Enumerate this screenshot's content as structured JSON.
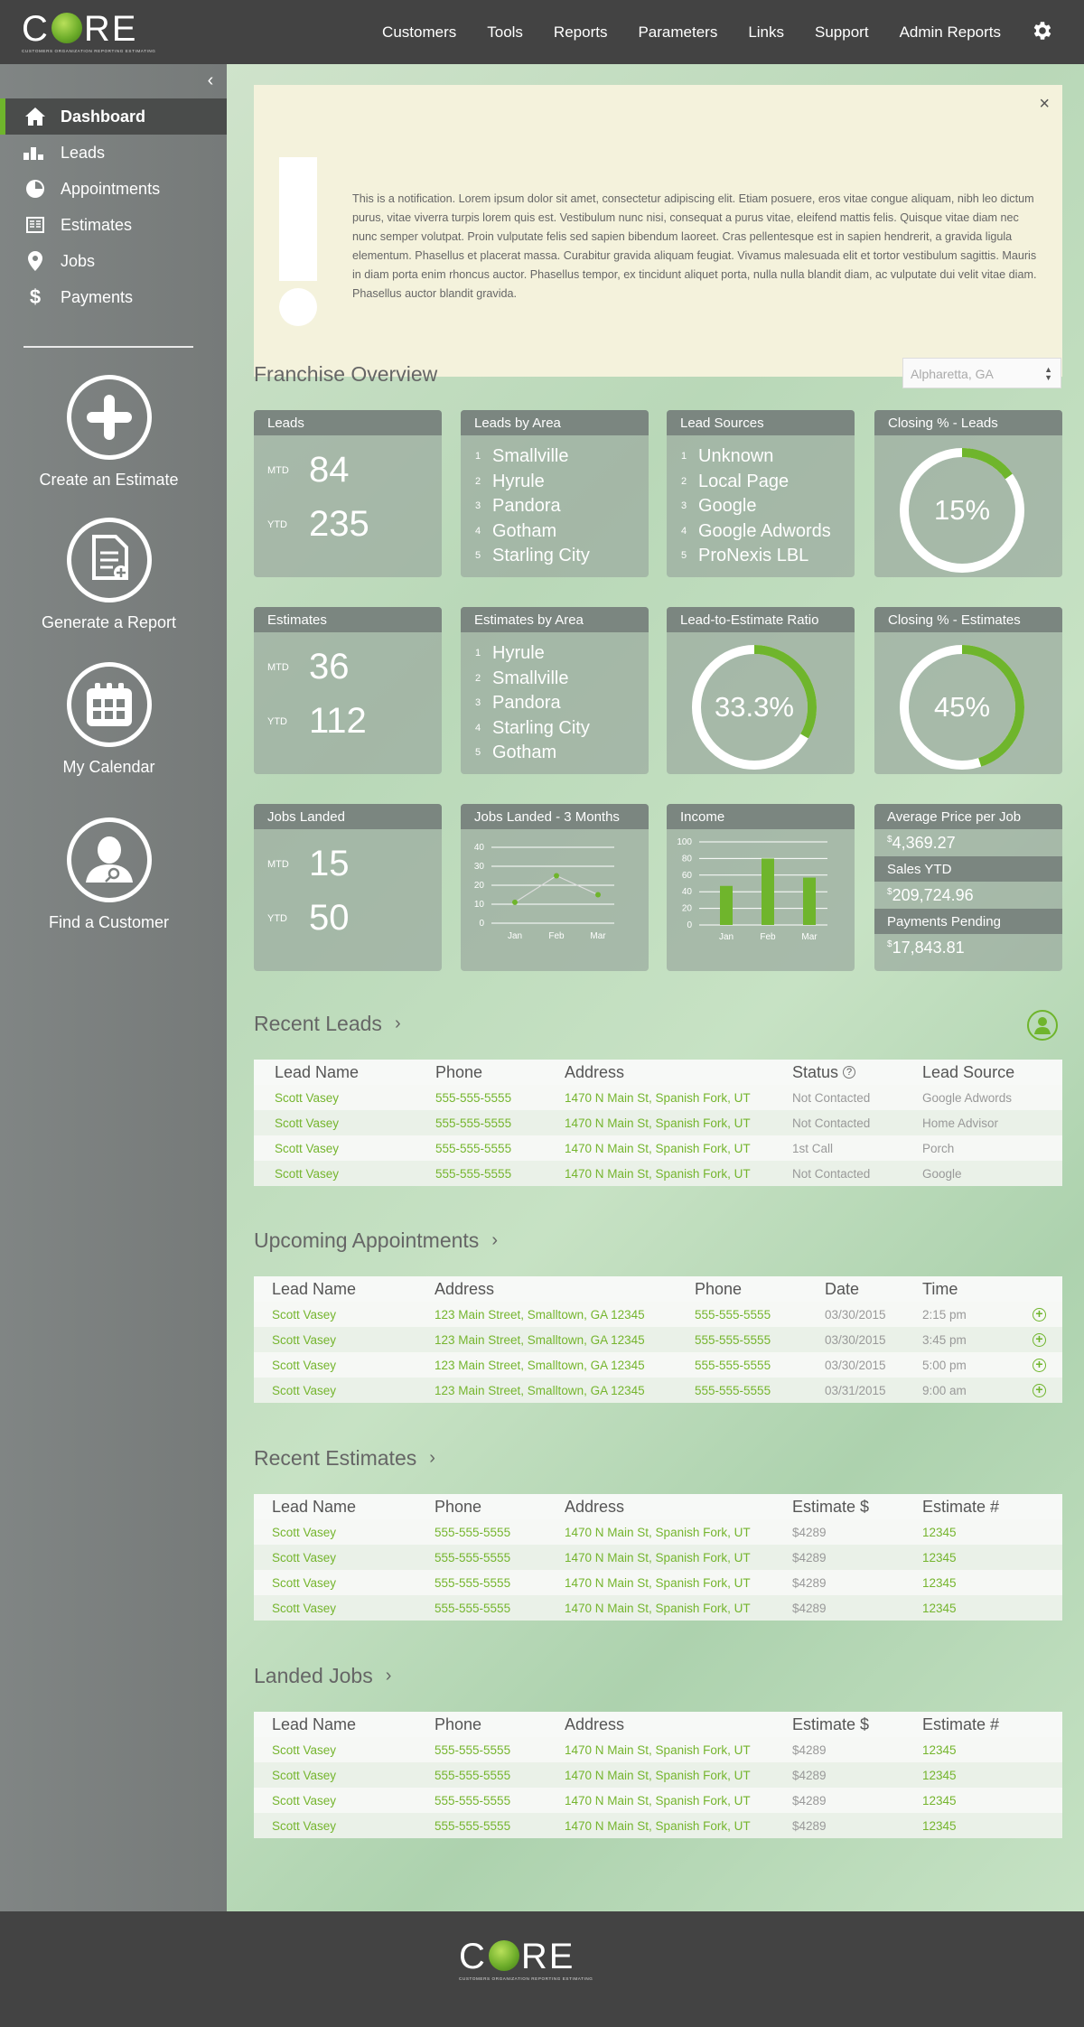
{
  "brand": {
    "name": "CORE",
    "tagline": "CUSTOMERS   ORGANIZATION   REPORTING   ESTIMATING",
    "accent": "#6fb52c"
  },
  "nav": {
    "items": [
      "Customers",
      "Tools",
      "Reports",
      "Parameters",
      "Links",
      "Support",
      "Admin Reports"
    ],
    "settings_icon": "gear-icon"
  },
  "sidebar": {
    "collapse_icon": "chevron-left-icon",
    "items": [
      {
        "label": "Dashboard",
        "icon": "home-icon",
        "active": true
      },
      {
        "label": "Leads",
        "icon": "bar-chart-icon"
      },
      {
        "label": "Appointments",
        "icon": "clock-pie-icon"
      },
      {
        "label": "Estimates",
        "icon": "document-icon"
      },
      {
        "label": "Jobs",
        "icon": "map-pin-icon"
      },
      {
        "label": "Payments",
        "icon": "dollar-icon"
      }
    ],
    "actions": [
      {
        "label": "Create an Estimate",
        "icon": "plus-icon"
      },
      {
        "label": "Generate a Report",
        "icon": "report-icon"
      },
      {
        "label": "My Calendar",
        "icon": "calendar-icon"
      },
      {
        "label": "Find a Customer",
        "icon": "find-person-icon"
      }
    ]
  },
  "notification": {
    "text": "This is a notification. Lorem ipsum dolor sit amet, consectetur adipiscing elit. Etiam posuere, eros vitae congue aliquam, nibh leo dictum purus, vitae viverra turpis lorem quis est. Vestibulum nunc nisi, consequat a purus vitae, eleifend mattis felis. Quisque vitae diam nec nunc semper volutpat. Proin vulputate felis sed sapien bibendum laoreet. Cras pellentesque est in sapien hendrerit, a gravida ligula elementum. Phasellus et placerat massa. Curabitur gravida aliquam feugiat. Vivamus malesuada elit et tortor vestibulum sagittis. Mauris in diam porta enim rhoncus auctor. Phasellus tempor, ex tincidunt aliquet porta, nulla nulla blandit diam, ac vulputate dui velit vitae diam. Phasellus auctor blandit gravida.",
    "close": "×"
  },
  "overview": {
    "title": "Franchise Overview",
    "location": "Alpharetta, GA",
    "leads": {
      "title": "Leads",
      "mtd_label": "MTD",
      "mtd": "84",
      "ytd_label": "YTD",
      "ytd": "235"
    },
    "leads_by_area": {
      "title": "Leads by Area",
      "items": [
        "Smallville",
        "Hyrule",
        "Pandora",
        "Gotham",
        "Starling City"
      ]
    },
    "lead_sources": {
      "title": "Lead Sources",
      "items": [
        "Unknown",
        "Local Page",
        "Google",
        "Google Adwords",
        "ProNexis LBL"
      ]
    },
    "closing_leads": {
      "title": "Closing % - Leads",
      "label": "15%",
      "value": 0.15
    },
    "estimates": {
      "title": "Estimates",
      "mtd_label": "MTD",
      "mtd": "36",
      "ytd_label": "YTD",
      "ytd": "112"
    },
    "estimates_by_area": {
      "title": "Estimates by Area",
      "items": [
        "Hyrule",
        "Smallville",
        "Pandora",
        "Starling City",
        "Gotham"
      ]
    },
    "lead_to_estimate": {
      "title": "Lead-to-Estimate Ratio",
      "label": "33.3%",
      "value": 0.333
    },
    "closing_estimates": {
      "title": "Closing % - Estimates",
      "label": "45%",
      "value": 0.45
    },
    "jobs_landed": {
      "title": "Jobs Landed",
      "mtd_label": "MTD",
      "mtd": "15",
      "ytd_label": "YTD",
      "ytd": "50"
    },
    "jobs_3m": {
      "title": "Jobs Landed - 3 Months"
    },
    "income": {
      "title": "Income"
    },
    "avg_price": {
      "title": "Average Price per Job",
      "value": "4,369.27",
      "currency": "$"
    },
    "sales_ytd": {
      "title": "Sales YTD",
      "value": "209,724.96",
      "currency": "$"
    },
    "payments_pending": {
      "title": "Payments Pending",
      "value": "17,843.81",
      "currency": "$"
    }
  },
  "chart_data": [
    {
      "type": "line",
      "title": "Jobs Landed - 3 Months",
      "categories": [
        "Jan",
        "Feb",
        "Mar"
      ],
      "values": [
        11,
        25,
        15
      ],
      "ylim": [
        0,
        40
      ],
      "yticks": [
        0,
        10,
        20,
        30,
        40
      ]
    },
    {
      "type": "bar",
      "title": "Income",
      "categories": [
        "Jan",
        "Feb",
        "Mar"
      ],
      "values": [
        47,
        80,
        57
      ],
      "ylim": [
        0,
        100
      ],
      "yticks": [
        0,
        20,
        40,
        60,
        80,
        100
      ]
    }
  ],
  "recent_leads": {
    "title": "Recent Leads",
    "headers": [
      "Lead Name",
      "Phone",
      "Address",
      "Status",
      "Lead Source"
    ],
    "rows": [
      [
        "Scott Vasey",
        "555-555-5555",
        "1470 N Main St, Spanish Fork, UT",
        "Not Contacted",
        "Google Adwords"
      ],
      [
        "Scott Vasey",
        "555-555-5555",
        "1470 N Main St, Spanish Fork, UT",
        "Not Contacted",
        "Home Advisor"
      ],
      [
        "Scott Vasey",
        "555-555-5555",
        "1470 N Main St, Spanish Fork, UT",
        "1st Call",
        "Porch"
      ],
      [
        "Scott Vasey",
        "555-555-5555",
        "1470 N Main St, Spanish Fork, UT",
        "Not Contacted",
        "Google"
      ]
    ]
  },
  "upcoming_appointments": {
    "title": "Upcoming Appointments",
    "headers": [
      "Lead Name",
      "Address",
      "Phone",
      "Date",
      "Time"
    ],
    "rows": [
      [
        "Scott Vasey",
        "123 Main Street, Smalltown, GA 12345",
        "555-555-5555",
        "03/30/2015",
        "2:15 pm"
      ],
      [
        "Scott Vasey",
        "123 Main Street, Smalltown, GA 12345",
        "555-555-5555",
        "03/30/2015",
        "3:45 pm"
      ],
      [
        "Scott Vasey",
        "123 Main Street, Smalltown, GA 12345",
        "555-555-5555",
        "03/30/2015",
        "5:00 pm"
      ],
      [
        "Scott Vasey",
        "123 Main Street, Smalltown, GA 12345",
        "555-555-5555",
        "03/31/2015",
        "9:00 am"
      ]
    ]
  },
  "recent_estimates": {
    "title": "Recent Estimates",
    "headers": [
      "Lead Name",
      "Phone",
      "Address",
      "Estimate $",
      "Estimate #"
    ],
    "rows": [
      [
        "Scott Vasey",
        "555-555-5555",
        "1470 N Main St, Spanish Fork, UT",
        "$4289",
        "12345"
      ],
      [
        "Scott Vasey",
        "555-555-5555",
        "1470 N Main St, Spanish Fork, UT",
        "$4289",
        "12345"
      ],
      [
        "Scott Vasey",
        "555-555-5555",
        "1470 N Main St, Spanish Fork, UT",
        "$4289",
        "12345"
      ],
      [
        "Scott Vasey",
        "555-555-5555",
        "1470 N Main St, Spanish Fork, UT",
        "$4289",
        "12345"
      ]
    ]
  },
  "landed_jobs": {
    "title": "Landed Jobs",
    "headers": [
      "Lead Name",
      "Phone",
      "Address",
      "Estimate $",
      "Estimate #"
    ],
    "rows": [
      [
        "Scott Vasey",
        "555-555-5555",
        "1470 N Main St, Spanish Fork, UT",
        "$4289",
        "12345"
      ],
      [
        "Scott Vasey",
        "555-555-5555",
        "1470 N Main St, Spanish Fork, UT",
        "$4289",
        "12345"
      ],
      [
        "Scott Vasey",
        "555-555-5555",
        "1470 N Main St, Spanish Fork, UT",
        "$4289",
        "12345"
      ],
      [
        "Scott Vasey",
        "555-555-5555",
        "1470 N Main St, Spanish Fork, UT",
        "$4289",
        "12345"
      ]
    ]
  }
}
